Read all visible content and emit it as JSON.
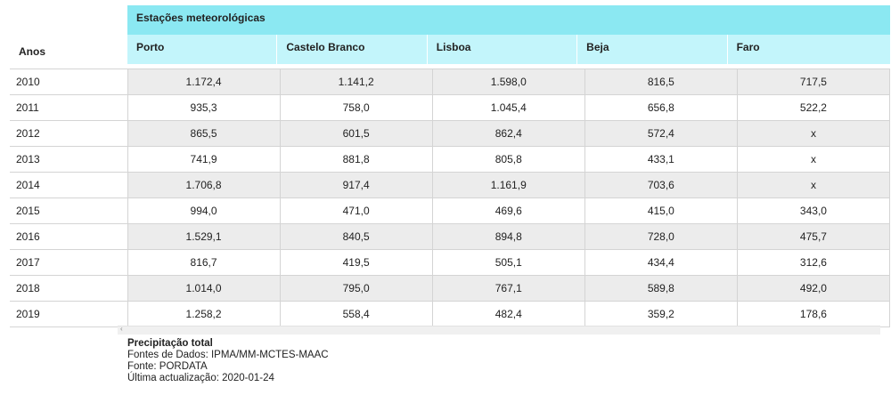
{
  "table": {
    "group_header": "Estações meteorológicas",
    "row_header": "Anos",
    "columns": [
      "Porto",
      "Castelo Branco",
      "Lisboa",
      "Beja",
      "Faro"
    ],
    "rows": [
      {
        "year": "2010",
        "values": [
          "1.172,4",
          "1.141,2",
          "1.598,0",
          "816,5",
          "717,5"
        ]
      },
      {
        "year": "2011",
        "values": [
          "935,3",
          "758,0",
          "1.045,4",
          "656,8",
          "522,2"
        ]
      },
      {
        "year": "2012",
        "values": [
          "865,5",
          "601,5",
          "862,4",
          "572,4",
          "x"
        ]
      },
      {
        "year": "2013",
        "values": [
          "741,9",
          "881,8",
          "805,8",
          "433,1",
          "x"
        ]
      },
      {
        "year": "2014",
        "values": [
          "1.706,8",
          "917,4",
          "1.161,9",
          "703,6",
          "x"
        ]
      },
      {
        "year": "2015",
        "values": [
          "994,0",
          "471,0",
          "469,6",
          "415,0",
          "343,0"
        ]
      },
      {
        "year": "2016",
        "values": [
          "1.529,1",
          "840,5",
          "894,8",
          "728,0",
          "475,7"
        ]
      },
      {
        "year": "2017",
        "values": [
          "816,7",
          "419,5",
          "505,1",
          "434,4",
          "312,6"
        ]
      },
      {
        "year": "2018",
        "values": [
          "1.014,0",
          "795,0",
          "767,1",
          "589,8",
          "492,0"
        ]
      },
      {
        "year": "2019",
        "values": [
          "1.258,2",
          "558,4",
          "482,4",
          "359,2",
          "178,6"
        ]
      }
    ]
  },
  "scrollbar": {
    "arrow": "‹",
    "icon": "chevron-left-icon"
  },
  "footer": {
    "title": "Precipitação total",
    "sources": "Fontes de Dados: IPMA/MM-MCTES-MAAC",
    "source": "Fonte: PORDATA",
    "updated": "Última actualização: 2020-01-24"
  }
}
